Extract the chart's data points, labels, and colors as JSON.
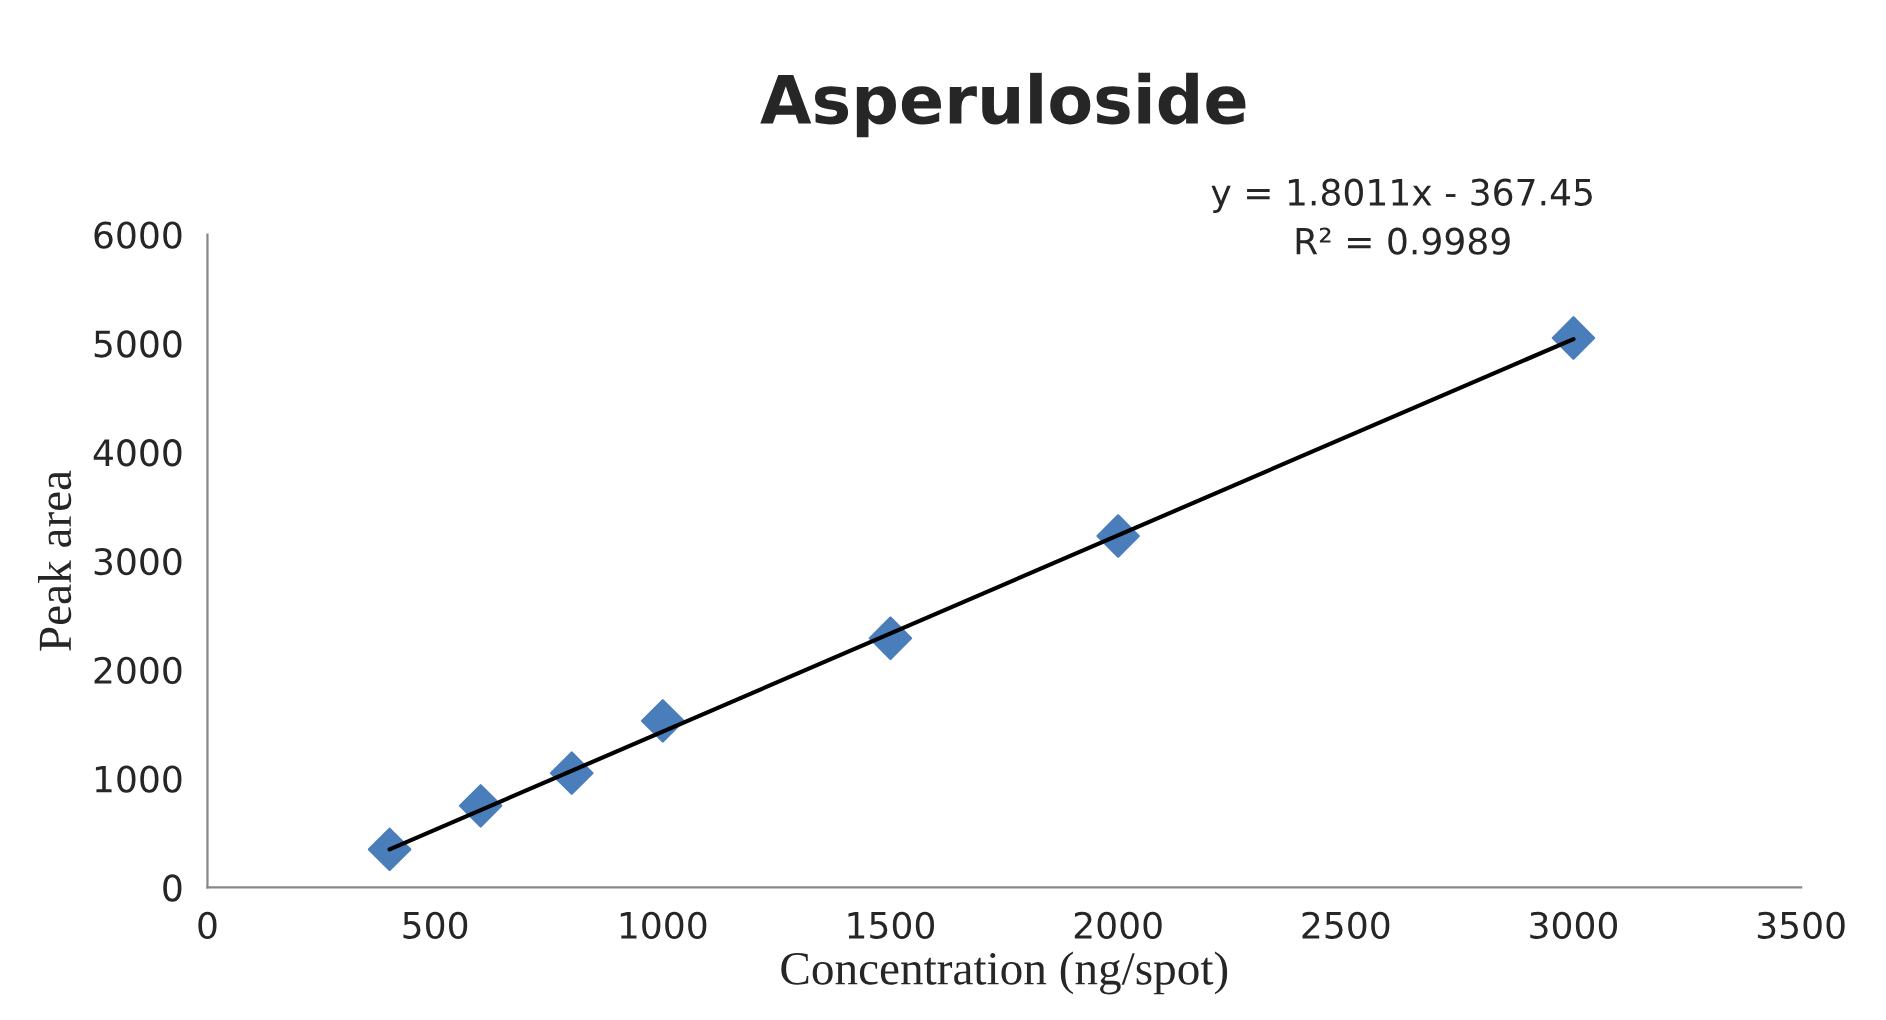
{
  "chart_data": {
    "type": "scatter",
    "title": "Asperuloside",
    "xlabel": "Concentration (ng/spot)",
    "ylabel": "Peak area",
    "x": [
      400,
      600,
      800,
      1000,
      1500,
      2000,
      3000
    ],
    "series": [
      {
        "type": "scatter",
        "color": "#4a7ebb",
        "marker": "diamond",
        "values": [
          350,
          750,
          1050,
          1530,
          2290,
          3230,
          5050
        ]
      },
      {
        "type": "line",
        "color": "#000000",
        "marker": "none",
        "line_style": "solid",
        "x": [
          400,
          3000
        ],
        "values": [
          350,
          5040
        ]
      }
    ],
    "annotations": [
      "y = 1.8011x - 367.45",
      "R² = 0.9989"
    ],
    "xlim": [
      0,
      3500
    ],
    "xticks": [
      0,
      500,
      1000,
      1500,
      2000,
      2500,
      3000,
      3500
    ],
    "ylim": [
      0,
      6000
    ],
    "yticks": [
      0,
      1000,
      2000,
      3000,
      4000,
      5000,
      6000
    ],
    "grid": false,
    "legend": false
  }
}
